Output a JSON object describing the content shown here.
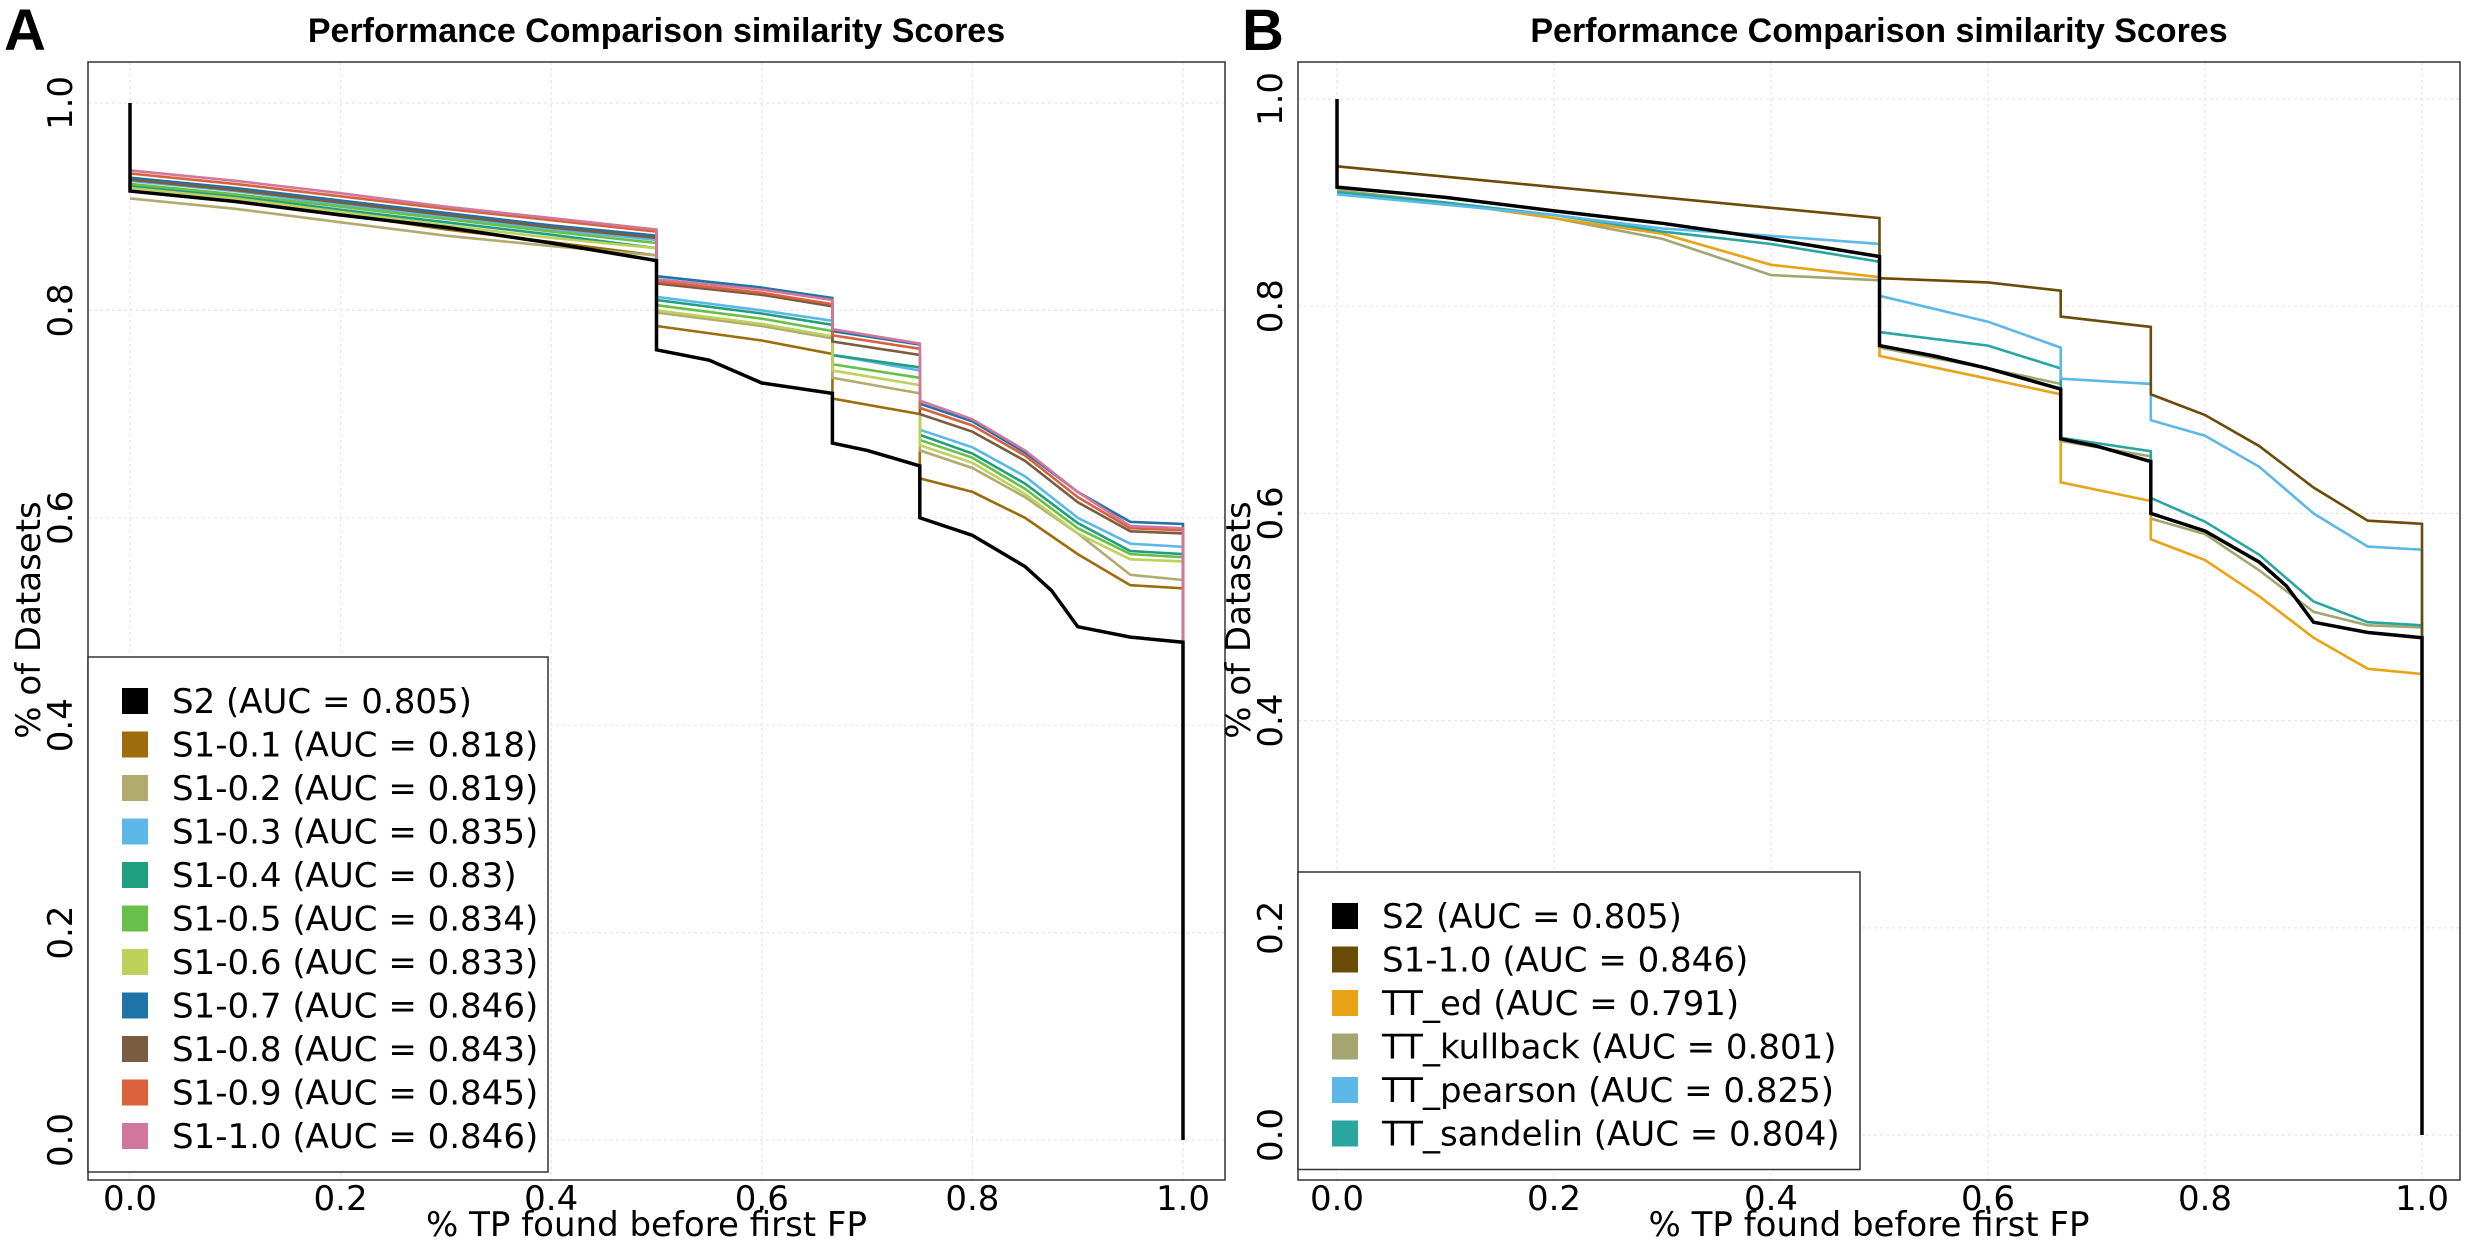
{
  "chart_data": [
    {
      "type": "line",
      "panel_label": "A",
      "title": "Performance Comparison similarity Scores",
      "xlabel": "% TP found before first FP",
      "ylabel": "% of Datasets",
      "xlim": [
        0.0,
        1.0
      ],
      "ylim": [
        0.0,
        1.0
      ],
      "xticks": [
        "0.0",
        "0.2",
        "0.4",
        "0.6",
        "0.8",
        "1.0"
      ],
      "yticks": [
        "0.0",
        "0.2",
        "0.4",
        "0.6",
        "0.8",
        "1.0"
      ],
      "grid": true,
      "legend_position": "bottom-left",
      "series": [
        {
          "name": "S1-0.1 (AUC = 0.818)",
          "color": "#9c6d0a",
          "x": [
            0.0,
            0.1,
            0.2,
            0.3,
            0.4,
            0.5,
            0.5,
            0.6,
            0.667,
            0.667,
            0.75,
            0.75,
            0.8,
            0.85,
            0.9,
            0.95,
            1.0,
            1.0
          ],
          "y": [
            0.915,
            0.905,
            0.893,
            0.878,
            0.866,
            0.853,
            0.785,
            0.771,
            0.758,
            0.715,
            0.7,
            0.638,
            0.625,
            0.6,
            0.565,
            0.535,
            0.532,
            0.0
          ]
        },
        {
          "name": "S1-0.2 (AUC = 0.819)",
          "color": "#b2ab6f",
          "x": [
            0.0,
            0.1,
            0.2,
            0.3,
            0.4,
            0.5,
            0.5,
            0.6,
            0.667,
            0.667,
            0.75,
            0.75,
            0.8,
            0.85,
            0.9,
            0.95,
            1.0,
            1.0
          ],
          "y": [
            0.908,
            0.898,
            0.885,
            0.872,
            0.862,
            0.853,
            0.798,
            0.785,
            0.773,
            0.735,
            0.72,
            0.665,
            0.648,
            0.62,
            0.585,
            0.545,
            0.54,
            0.0
          ]
        },
        {
          "name": "S1-0.3 (AUC = 0.835)",
          "color": "#5cb8e6",
          "x": [
            0.0,
            0.1,
            0.2,
            0.3,
            0.4,
            0.5,
            0.5,
            0.6,
            0.667,
            0.667,
            0.75,
            0.75,
            0.8,
            0.85,
            0.9,
            0.95,
            1.0,
            1.0
          ],
          "y": [
            0.925,
            0.915,
            0.902,
            0.89,
            0.878,
            0.868,
            0.813,
            0.8,
            0.79,
            0.757,
            0.742,
            0.685,
            0.668,
            0.64,
            0.6,
            0.575,
            0.572,
            0.0
          ]
        },
        {
          "name": "S1-0.4 (AUC = 0.83)",
          "color": "#1f9e80",
          "x": [
            0.0,
            0.1,
            0.2,
            0.3,
            0.4,
            0.5,
            0.5,
            0.6,
            0.667,
            0.667,
            0.75,
            0.75,
            0.8,
            0.85,
            0.9,
            0.95,
            1.0,
            1.0
          ],
          "y": [
            0.92,
            0.91,
            0.897,
            0.885,
            0.873,
            0.86,
            0.81,
            0.797,
            0.786,
            0.757,
            0.745,
            0.68,
            0.662,
            0.633,
            0.595,
            0.568,
            0.565,
            0.0
          ]
        },
        {
          "name": "S1-0.5 (AUC = 0.834)",
          "color": "#6abf4b",
          "x": [
            0.0,
            0.1,
            0.2,
            0.3,
            0.4,
            0.5,
            0.5,
            0.6,
            0.667,
            0.667,
            0.75,
            0.75,
            0.8,
            0.85,
            0.9,
            0.95,
            1.0,
            1.0
          ],
          "y": [
            0.922,
            0.912,
            0.9,
            0.888,
            0.876,
            0.865,
            0.805,
            0.792,
            0.78,
            0.748,
            0.735,
            0.675,
            0.658,
            0.628,
            0.59,
            0.565,
            0.562,
            0.0
          ]
        },
        {
          "name": "S1-0.6 (AUC = 0.833)",
          "color": "#bdd15b",
          "x": [
            0.0,
            0.1,
            0.2,
            0.3,
            0.4,
            0.5,
            0.5,
            0.6,
            0.667,
            0.667,
            0.75,
            0.75,
            0.8,
            0.85,
            0.9,
            0.95,
            1.0,
            1.0
          ],
          "y": [
            0.918,
            0.908,
            0.895,
            0.882,
            0.87,
            0.86,
            0.8,
            0.787,
            0.775,
            0.742,
            0.728,
            0.67,
            0.653,
            0.623,
            0.585,
            0.56,
            0.558,
            0.0
          ]
        },
        {
          "name": "S1-0.7 (AUC = 0.846)",
          "color": "#1e74a6",
          "x": [
            0.0,
            0.1,
            0.2,
            0.3,
            0.4,
            0.5,
            0.5,
            0.6,
            0.667,
            0.667,
            0.75,
            0.75,
            0.8,
            0.85,
            0.9,
            0.95,
            1.0,
            1.0
          ],
          "y": [
            0.928,
            0.918,
            0.906,
            0.894,
            0.882,
            0.872,
            0.833,
            0.822,
            0.812,
            0.78,
            0.767,
            0.71,
            0.693,
            0.663,
            0.625,
            0.596,
            0.594,
            0.0
          ]
        },
        {
          "name": "S1-0.8 (AUC = 0.843)",
          "color": "#7a5c40",
          "x": [
            0.0,
            0.1,
            0.2,
            0.3,
            0.4,
            0.5,
            0.5,
            0.6,
            0.667,
            0.667,
            0.75,
            0.75,
            0.8,
            0.85,
            0.9,
            0.95,
            1.0,
            1.0
          ],
          "y": [
            0.926,
            0.916,
            0.904,
            0.892,
            0.88,
            0.87,
            0.826,
            0.815,
            0.804,
            0.77,
            0.757,
            0.7,
            0.683,
            0.655,
            0.615,
            0.587,
            0.585,
            0.0
          ]
        },
        {
          "name": "S1-0.9 (AUC = 0.845)",
          "color": "#d9623a",
          "x": [
            0.0,
            0.1,
            0.2,
            0.3,
            0.4,
            0.5,
            0.5,
            0.6,
            0.667,
            0.667,
            0.75,
            0.75,
            0.8,
            0.85,
            0.9,
            0.95,
            1.0,
            1.0
          ],
          "y": [
            0.932,
            0.922,
            0.91,
            0.898,
            0.887,
            0.876,
            0.828,
            0.817,
            0.806,
            0.776,
            0.763,
            0.706,
            0.689,
            0.66,
            0.62,
            0.59,
            0.588,
            0.0
          ]
        },
        {
          "name": "S1-1.0 (AUC = 0.846)",
          "color": "#d1779e",
          "x": [
            0.0,
            0.1,
            0.2,
            0.3,
            0.4,
            0.5,
            0.5,
            0.6,
            0.667,
            0.667,
            0.75,
            0.75,
            0.8,
            0.85,
            0.9,
            0.95,
            1.0,
            1.0
          ],
          "y": [
            0.935,
            0.925,
            0.913,
            0.9,
            0.889,
            0.878,
            0.83,
            0.82,
            0.81,
            0.782,
            0.768,
            0.713,
            0.695,
            0.665,
            0.625,
            0.592,
            0.59,
            0.0
          ]
        },
        {
          "name": "S2 (AUC = 0.805)",
          "color": "#000000",
          "x": [
            0.0,
            0.0,
            0.1,
            0.2,
            0.3,
            0.4,
            0.5,
            0.5,
            0.55,
            0.6,
            0.667,
            0.667,
            0.7,
            0.75,
            0.75,
            0.8,
            0.85,
            0.875,
            0.9,
            0.95,
            1.0,
            1.0
          ],
          "y": [
            1.0,
            0.915,
            0.905,
            0.892,
            0.88,
            0.865,
            0.848,
            0.762,
            0.752,
            0.73,
            0.72,
            0.672,
            0.665,
            0.65,
            0.6,
            0.583,
            0.553,
            0.53,
            0.495,
            0.485,
            0.48,
            0.0
          ]
        }
      ]
    },
    {
      "type": "line",
      "panel_label": "B",
      "title": "Performance Comparison similarity Scores",
      "xlabel": "% TP found before first FP",
      "ylabel": "% of Datasets",
      "xlim": [
        0.0,
        1.0
      ],
      "ylim": [
        0.0,
        1.0
      ],
      "xticks": [
        "0.0",
        "0.2",
        "0.4",
        "0.6",
        "0.8",
        "1.0"
      ],
      "yticks": [
        "0.0",
        "0.2",
        "0.4",
        "0.6",
        "0.8",
        "1.0"
      ],
      "grid": true,
      "legend_position": "bottom-left",
      "series": [
        {
          "name": "TT_kullback (AUC = 0.801)",
          "color": "#a3a671",
          "x": [
            0.0,
            0.1,
            0.2,
            0.3,
            0.4,
            0.5,
            0.5,
            0.6,
            0.667,
            0.667,
            0.75,
            0.75,
            0.8,
            0.85,
            0.9,
            0.95,
            1.0,
            1.0
          ],
          "y": [
            0.912,
            0.9,
            0.885,
            0.865,
            0.83,
            0.825,
            0.76,
            0.74,
            0.725,
            0.67,
            0.655,
            0.595,
            0.58,
            0.545,
            0.505,
            0.492,
            0.49,
            0.0
          ]
        },
        {
          "name": "TT_ed (AUC = 0.791)",
          "color": "#e8a316",
          "x": [
            0.0,
            0.1,
            0.2,
            0.3,
            0.4,
            0.5,
            0.5,
            0.6,
            0.667,
            0.667,
            0.75,
            0.75,
            0.8,
            0.85,
            0.9,
            0.95,
            1.0,
            1.0
          ],
          "y": [
            0.91,
            0.9,
            0.885,
            0.87,
            0.84,
            0.828,
            0.752,
            0.73,
            0.715,
            0.63,
            0.612,
            0.575,
            0.555,
            0.52,
            0.48,
            0.45,
            0.445,
            0.0
          ]
        },
        {
          "name": "TT_sandelin (AUC = 0.804)",
          "color": "#2aa6a0",
          "x": [
            0.0,
            0.1,
            0.2,
            0.3,
            0.4,
            0.5,
            0.5,
            0.6,
            0.667,
            0.667,
            0.75,
            0.75,
            0.8,
            0.85,
            0.9,
            0.95,
            1.0,
            1.0
          ],
          "y": [
            0.91,
            0.9,
            0.888,
            0.872,
            0.86,
            0.843,
            0.775,
            0.762,
            0.74,
            0.673,
            0.66,
            0.615,
            0.592,
            0.56,
            0.515,
            0.495,
            0.492,
            0.0
          ]
        },
        {
          "name": "TT_pearson (AUC = 0.825)",
          "color": "#5cb8e6",
          "x": [
            0.0,
            0.1,
            0.2,
            0.3,
            0.4,
            0.5,
            0.5,
            0.6,
            0.667,
            0.667,
            0.75,
            0.75,
            0.8,
            0.85,
            0.9,
            0.95,
            1.0,
            1.0
          ],
          "y": [
            0.908,
            0.898,
            0.888,
            0.875,
            0.868,
            0.86,
            0.81,
            0.785,
            0.76,
            0.73,
            0.725,
            0.69,
            0.675,
            0.645,
            0.6,
            0.568,
            0.565,
            0.0
          ]
        },
        {
          "name": "S1-1.0 (AUC = 0.846)",
          "color": "#6b4c07",
          "x": [
            0.0,
            0.1,
            0.2,
            0.3,
            0.4,
            0.5,
            0.5,
            0.6,
            0.667,
            0.667,
            0.75,
            0.75,
            0.8,
            0.85,
            0.9,
            0.95,
            1.0,
            1.0
          ],
          "y": [
            0.935,
            0.925,
            0.915,
            0.905,
            0.895,
            0.885,
            0.827,
            0.823,
            0.815,
            0.79,
            0.78,
            0.715,
            0.695,
            0.665,
            0.625,
            0.593,
            0.59,
            0.0
          ]
        },
        {
          "name": "S2 (AUC = 0.805)",
          "color": "#000000",
          "x": [
            0.0,
            0.0,
            0.1,
            0.2,
            0.3,
            0.4,
            0.5,
            0.5,
            0.55,
            0.6,
            0.667,
            0.667,
            0.7,
            0.75,
            0.75,
            0.8,
            0.85,
            0.875,
            0.9,
            0.95,
            1.0,
            1.0
          ],
          "y": [
            1.0,
            0.915,
            0.905,
            0.892,
            0.88,
            0.865,
            0.848,
            0.762,
            0.752,
            0.74,
            0.72,
            0.672,
            0.665,
            0.65,
            0.6,
            0.583,
            0.553,
            0.53,
            0.495,
            0.485,
            0.48,
            0.0
          ]
        }
      ]
    }
  ],
  "legends": [
    [
      {
        "label": "S2 (AUC = 0.805)",
        "color": "#000000"
      },
      {
        "label": "S1-0.1 (AUC = 0.818)",
        "color": "#9c6d0a"
      },
      {
        "label": "S1-0.2 (AUC = 0.819)",
        "color": "#b2ab6f"
      },
      {
        "label": "S1-0.3 (AUC = 0.835)",
        "color": "#5cb8e6"
      },
      {
        "label": "S1-0.4 (AUC = 0.83)",
        "color": "#1f9e80"
      },
      {
        "label": "S1-0.5 (AUC = 0.834)",
        "color": "#6abf4b"
      },
      {
        "label": "S1-0.6 (AUC = 0.833)",
        "color": "#bdd15b"
      },
      {
        "label": "S1-0.7 (AUC = 0.846)",
        "color": "#1e74a6"
      },
      {
        "label": "S1-0.8 (AUC = 0.843)",
        "color": "#7a5c40"
      },
      {
        "label": "S1-0.9 (AUC = 0.845)",
        "color": "#d9623a"
      },
      {
        "label": "S1-1.0 (AUC = 0.846)",
        "color": "#d1779e"
      }
    ],
    [
      {
        "label": "S2 (AUC = 0.805)",
        "color": "#000000"
      },
      {
        "label": "S1-1.0 (AUC = 0.846)",
        "color": "#6b4c07"
      },
      {
        "label": "TT_ed (AUC = 0.791)",
        "color": "#e8a316"
      },
      {
        "label": "TT_kullback (AUC = 0.801)",
        "color": "#a3a671"
      },
      {
        "label": "TT_pearson (AUC = 0.825)",
        "color": "#5cb8e6"
      },
      {
        "label": "TT_sandelin (AUC = 0.804)",
        "color": "#2aa6a0"
      }
    ]
  ]
}
